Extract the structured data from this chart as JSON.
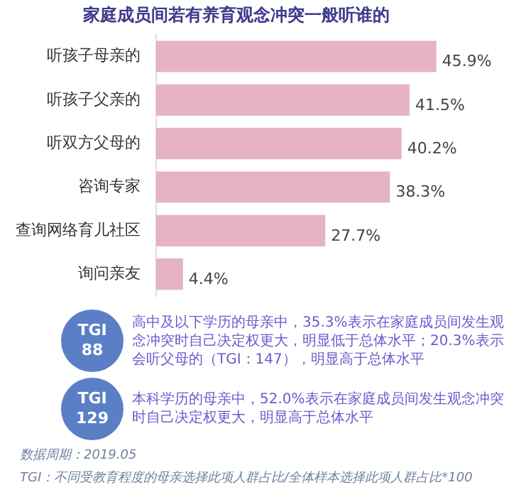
{
  "chart_data": {
    "type": "bar",
    "orientation": "horizontal",
    "title": "家庭成员间若有养育观念冲突一般听谁的",
    "categories": [
      "听孩子母亲的",
      "听孩子父亲的",
      "听双方父母的",
      "咨询专家",
      "查询网络育儿社区",
      "询问亲友"
    ],
    "values": [
      45.9,
      41.5,
      40.2,
      38.3,
      27.7,
      4.4
    ],
    "color": "#e6b3c3",
    "value_labels": [
      "45.9%",
      "41.5%",
      "40.2%",
      "38.3%",
      "27.7%",
      "4.4%"
    ],
    "legend": false,
    "annotations": [
      "TGI\n88",
      "高中及以下学历的母亲中，35.3%表示在家庭成员间发生观念冲突时自己决定权更大，明显低于总体水平；20.3%表示会听父母的（TGI：147），明显高于总体水平",
      "TGI\n129",
      "本科学历的母亲中，52.0%表示在家庭成员间发生观念冲突时自己决定权更大，明显高于总体水平",
      "数据周期：2019.05",
      "TGI：不同受教育程度的母亲选择此项人群占比/全体样本选择此项人群占比*100"
    ]
  }
}
